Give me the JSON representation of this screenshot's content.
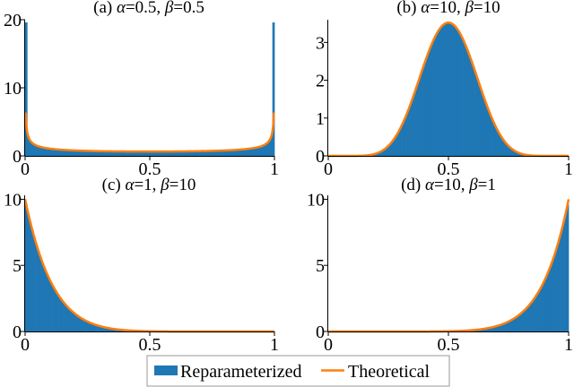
{
  "colors": {
    "reparameterized": "#1f77b4",
    "theoretical": "#ff7f0e"
  },
  "legend": {
    "placement": "bottom-center",
    "items": [
      {
        "label": "Reparameterized",
        "color": "#1f77b4",
        "kind": "bar"
      },
      {
        "label": "Theoretical",
        "color": "#ff7f0e",
        "kind": "line"
      }
    ]
  },
  "chart_data": [
    {
      "type": "area",
      "title_prefix": "(a) ",
      "title_alpha": "α",
      "title_alpha_val": "=0.5, ",
      "title_beta": "β",
      "title_beta_val": "=0.5",
      "alpha": 0.5,
      "beta": 0.5,
      "xlim": [
        0,
        1
      ],
      "ylim": [
        0,
        20
      ],
      "x_ticks": [
        {
          "value": 0,
          "label": "0"
        },
        {
          "value": 0.5,
          "label": "0.5"
        },
        {
          "value": 1,
          "label": "1"
        }
      ],
      "y_ticks": [
        {
          "value": 0,
          "label": "0"
        },
        {
          "value": 10,
          "label": "10"
        },
        {
          "value": 20,
          "label": "20"
        }
      ],
      "series": [
        {
          "name": "Reparameterized",
          "kind": "histogram"
        },
        {
          "name": "Theoretical",
          "kind": "density"
        }
      ],
      "grid": false
    },
    {
      "type": "area",
      "title_prefix": "(b) ",
      "title_alpha": "α",
      "title_alpha_val": "=10, ",
      "title_beta": "β",
      "title_beta_val": "=10",
      "alpha": 10,
      "beta": 10,
      "xlim": [
        0,
        1
      ],
      "ylim": [
        0,
        3.6
      ],
      "x_ticks": [
        {
          "value": 0,
          "label": "0"
        },
        {
          "value": 0.5,
          "label": "0.5"
        },
        {
          "value": 1,
          "label": "1"
        }
      ],
      "y_ticks": [
        {
          "value": 0,
          "label": "0"
        },
        {
          "value": 1,
          "label": "1"
        },
        {
          "value": 2,
          "label": "2"
        },
        {
          "value": 3,
          "label": "3"
        }
      ],
      "series": [
        {
          "name": "Reparameterized",
          "kind": "histogram"
        },
        {
          "name": "Theoretical",
          "kind": "density"
        }
      ],
      "grid": false
    },
    {
      "type": "area",
      "title_prefix": "(c) ",
      "title_alpha": "α",
      "title_alpha_val": "=1, ",
      "title_beta": "β",
      "title_beta_val": "=10",
      "alpha": 1,
      "beta": 10,
      "xlim": [
        0,
        1
      ],
      "ylim": [
        0,
        10.3
      ],
      "x_ticks": [
        {
          "value": 0,
          "label": "0"
        },
        {
          "value": 0.5,
          "label": "0.5"
        },
        {
          "value": 1,
          "label": "1"
        }
      ],
      "y_ticks": [
        {
          "value": 0,
          "label": "0"
        },
        {
          "value": 5,
          "label": "5"
        },
        {
          "value": 10,
          "label": "10"
        }
      ],
      "series": [
        {
          "name": "Reparameterized",
          "kind": "histogram"
        },
        {
          "name": "Theoretical",
          "kind": "density"
        }
      ],
      "grid": false
    },
    {
      "type": "area",
      "title_prefix": "(d) ",
      "title_alpha": "α",
      "title_alpha_val": "=10, ",
      "title_beta": "β",
      "title_beta_val": "=1",
      "alpha": 10,
      "beta": 1,
      "xlim": [
        0,
        1
      ],
      "ylim": [
        0,
        10.3
      ],
      "x_ticks": [
        {
          "value": 0,
          "label": "0"
        },
        {
          "value": 0.5,
          "label": "0.5"
        },
        {
          "value": 1,
          "label": "1"
        }
      ],
      "y_ticks": [
        {
          "value": 0,
          "label": "0"
        },
        {
          "value": 5,
          "label": "5"
        },
        {
          "value": 10,
          "label": "10"
        }
      ],
      "series": [
        {
          "name": "Reparameterized",
          "kind": "histogram"
        },
        {
          "name": "Theoretical",
          "kind": "density"
        }
      ],
      "grid": false
    }
  ]
}
